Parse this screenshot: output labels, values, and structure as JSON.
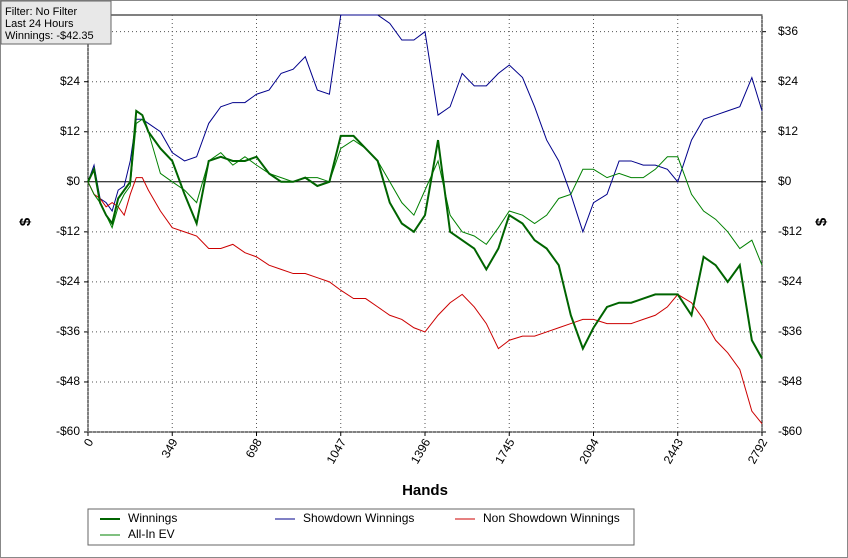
{
  "chart_data": {
    "type": "line",
    "info_lines": [
      "Filter: No Filter",
      "Last 24 Hours",
      "Winnings: -$42.35"
    ],
    "x_label": "Hands",
    "y_label": "$",
    "y2_label": "$",
    "xlim": [
      0,
      2792
    ],
    "xticks": [
      0,
      349,
      698,
      1047,
      1396,
      1745,
      2094,
      2443,
      2792
    ],
    "ylim": [
      -60,
      40
    ],
    "yticks": [
      {
        "value": -60,
        "label": "-$60"
      },
      {
        "value": -48,
        "label": "-$48"
      },
      {
        "value": -36,
        "label": "-$36"
      },
      {
        "value": -24,
        "label": "-$24"
      },
      {
        "value": -12,
        "label": "-$12"
      },
      {
        "value": 0,
        "label": "$0"
      },
      {
        "value": 12,
        "label": "$12"
      },
      {
        "value": 24,
        "label": "$24"
      },
      {
        "value": 36,
        "label": "$36"
      }
    ],
    "grid": true,
    "x": [
      0,
      25,
      50,
      75,
      100,
      125,
      150,
      175,
      200,
      225,
      250,
      300,
      349,
      400,
      450,
      500,
      550,
      600,
      650,
      698,
      750,
      800,
      850,
      900,
      950,
      1000,
      1047,
      1100,
      1150,
      1200,
      1250,
      1300,
      1350,
      1396,
      1450,
      1500,
      1550,
      1600,
      1650,
      1700,
      1745,
      1800,
      1850,
      1900,
      1950,
      2000,
      2050,
      2094,
      2150,
      2200,
      2250,
      2300,
      2350,
      2400,
      2443,
      2500,
      2550,
      2600,
      2650,
      2700,
      2750,
      2792
    ],
    "series": [
      {
        "name": "Winnings",
        "color": "#006400",
        "values": [
          0,
          3,
          -5,
          -8,
          -10,
          -4,
          -2,
          0,
          17,
          16,
          12,
          8,
          5,
          -3,
          -10,
          5,
          6,
          5,
          5,
          6,
          2,
          0,
          0,
          1,
          -1,
          0,
          11,
          11,
          8,
          5,
          -5,
          -10,
          -12,
          -8,
          10,
          -12,
          -14,
          -16,
          -21,
          -16,
          -8,
          -10,
          -14,
          -16,
          -20,
          -32,
          -40,
          -35,
          -30,
          -29,
          -29,
          -28,
          -27,
          -27,
          -27,
          -32,
          -18,
          -20,
          -24,
          -20,
          -38,
          -42.35
        ]
      },
      {
        "name": "Showdown Winnings",
        "color": "#00008b",
        "values": [
          0,
          4,
          -4,
          -5,
          -7,
          -2,
          -1,
          5,
          15,
          15,
          14,
          12,
          7,
          5,
          6,
          14,
          18,
          19,
          19,
          21,
          22,
          26,
          27,
          30,
          22,
          21,
          40,
          40,
          40,
          40,
          38,
          34,
          34,
          36,
          16,
          18,
          26,
          23,
          23,
          26,
          28,
          25,
          18,
          10,
          5,
          -3,
          -12,
          -5,
          -3,
          5,
          5,
          4,
          4,
          3,
          0,
          10,
          15,
          16,
          17,
          18,
          25,
          17
        ]
      },
      {
        "name": "Non Showdown Winnings",
        "color": "#cc0000",
        "values": [
          0,
          -3,
          -4,
          -6,
          -5,
          -6,
          -8,
          -3,
          1,
          1,
          -2,
          -7,
          -11,
          -12,
          -13,
          -16,
          -16,
          -15,
          -17,
          -18,
          -20,
          -21,
          -22,
          -22,
          -23,
          -24,
          -26,
          -28,
          -28,
          -30,
          -32,
          -33,
          -35,
          -36,
          -32,
          -29,
          -27,
          -30,
          -34,
          -40,
          -38,
          -37,
          -37,
          -36,
          -35,
          -34,
          -33,
          -33,
          -34,
          -34,
          -34,
          -33,
          -32,
          -30,
          -27,
          -29,
          -33,
          -38,
          -41,
          -45,
          -55,
          -58
        ]
      },
      {
        "name": "All-In EV",
        "color": "#008000",
        "values": [
          0,
          -3,
          -5,
          -8,
          -11,
          -6,
          -3,
          -1,
          14,
          15,
          12,
          2,
          0,
          -2,
          -5,
          5,
          7,
          4,
          6,
          4,
          2,
          1,
          0,
          1,
          1,
          0,
          8,
          10,
          8,
          5,
          0,
          -5,
          -8,
          -2,
          5,
          -8,
          -12,
          -13,
          -15,
          -11,
          -7,
          -8,
          -10,
          -8,
          -4,
          -3,
          3,
          3,
          1,
          2,
          1,
          1,
          3,
          6,
          6,
          -3,
          -7,
          -9,
          -12,
          -16,
          -14,
          -20
        ]
      }
    ]
  }
}
